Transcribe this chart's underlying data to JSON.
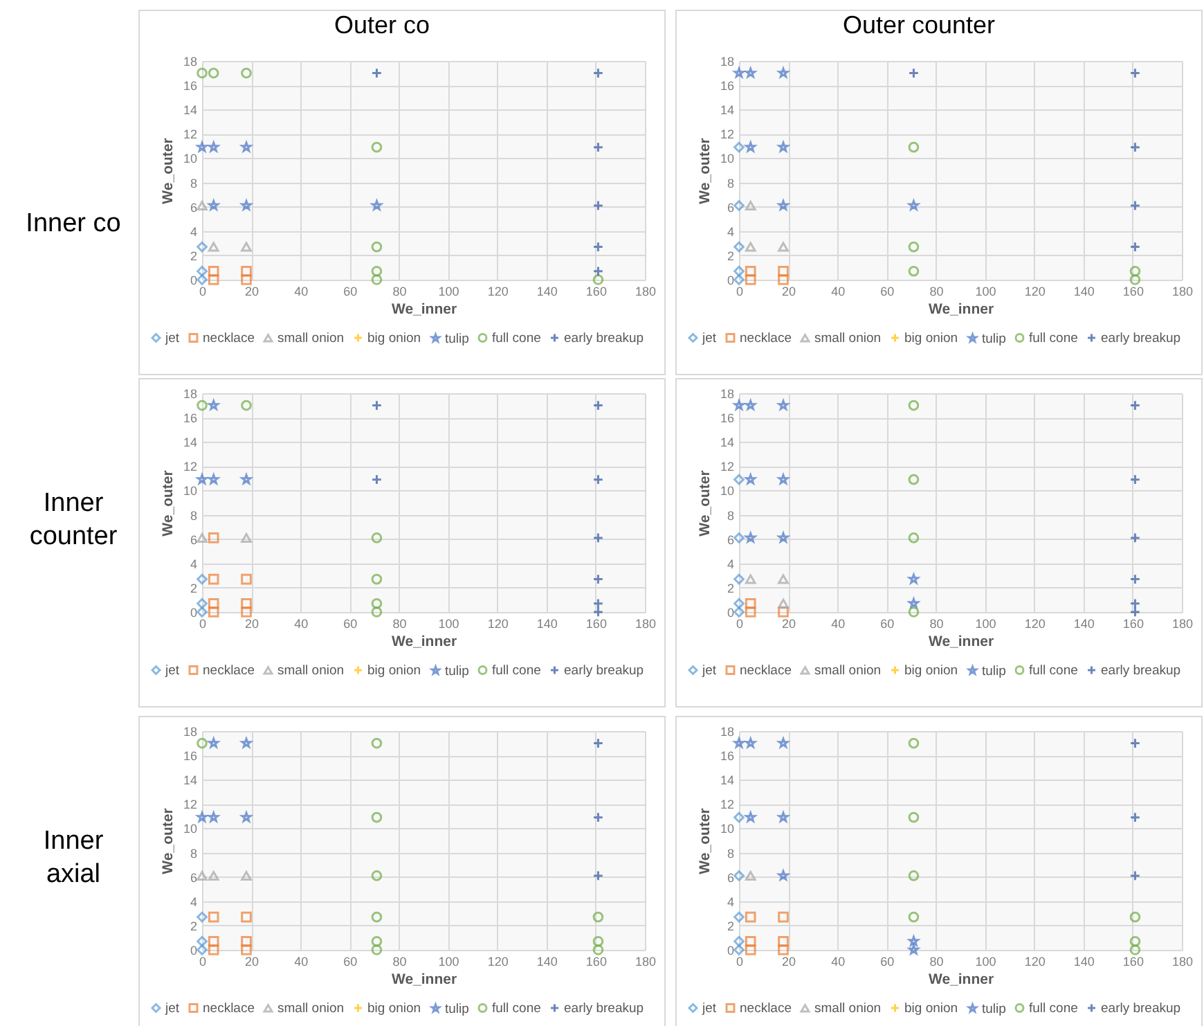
{
  "chart_data": [
    {
      "type": "scatter",
      "title": "Outer co",
      "annotations": [
        "Inner co"
      ],
      "xlabel": "We_inner",
      "ylabel": "We_outer",
      "xlim": [
        0,
        180
      ],
      "ylim": [
        0,
        18
      ],
      "xticks": [
        0,
        20,
        40,
        60,
        80,
        100,
        120,
        140,
        160,
        180
      ],
      "yticks": [
        0,
        2,
        4,
        6,
        8,
        10,
        12,
        14,
        16,
        18
      ],
      "grid": true,
      "legend": "bottom",
      "series": [
        {
          "name": "jet",
          "color": "#5b9bd5",
          "marker": "diamond",
          "x": [
            0,
            0,
            0
          ],
          "values": [
            2.7,
            0.7,
            0
          ]
        },
        {
          "name": "necklace",
          "color": "#ed7d31",
          "marker": "square",
          "x": [
            4.7,
            4.7,
            18,
            18
          ],
          "values": [
            0.7,
            0,
            0.7,
            0
          ]
        },
        {
          "name": "small onion",
          "color": "#a5a5a5",
          "marker": "triangle",
          "x": [
            0,
            4.7,
            18
          ],
          "values": [
            6.1,
            2.7,
            2.7
          ]
        },
        {
          "name": "big onion",
          "color": "#ffc000",
          "marker": "cross"
        },
        {
          "name": "tulip",
          "color": "#4472c4",
          "marker": "star",
          "x": [
            0,
            4.7,
            18,
            4.7,
            18,
            71
          ],
          "values": [
            10.9,
            10.9,
            10.9,
            6.1,
            6.1,
            6.1
          ]
        },
        {
          "name": "full cone",
          "color": "#70ad47",
          "marker": "circle",
          "x": [
            0,
            4.7,
            18,
            71,
            71,
            71,
            71,
            161
          ],
          "values": [
            17,
            17,
            17,
            10.9,
            2.7,
            0.7,
            0,
            0
          ]
        },
        {
          "name": "early breakup",
          "color": "#2f55a0",
          "marker": "cross",
          "x": [
            71,
            161,
            161,
            161,
            161,
            161
          ],
          "values": [
            17,
            17,
            10.9,
            6.1,
            2.7,
            0.7
          ]
        }
      ]
    },
    {
      "type": "scatter",
      "title": "Outer counter",
      "xlabel": "We_inner",
      "ylabel": "We_outer",
      "xlim": [
        0,
        180
      ],
      "ylim": [
        0,
        18
      ],
      "xticks": [
        0,
        20,
        40,
        60,
        80,
        100,
        120,
        140,
        160,
        180
      ],
      "yticks": [
        0,
        2,
        4,
        6,
        8,
        10,
        12,
        14,
        16,
        18
      ],
      "grid": true,
      "legend": "bottom",
      "series": [
        {
          "name": "jet",
          "color": "#5b9bd5",
          "marker": "diamond",
          "x": [
            0,
            0,
            0,
            0,
            0
          ],
          "values": [
            10.9,
            6.1,
            2.7,
            0.7,
            0
          ]
        },
        {
          "name": "necklace",
          "color": "#ed7d31",
          "marker": "square",
          "x": [
            4.7,
            4.7,
            18,
            18
          ],
          "values": [
            0.7,
            0,
            0.7,
            0
          ]
        },
        {
          "name": "small onion",
          "color": "#a5a5a5",
          "marker": "triangle",
          "x": [
            4.7,
            4.7,
            18
          ],
          "values": [
            6.1,
            2.7,
            2.7
          ]
        },
        {
          "name": "big onion",
          "color": "#ffc000",
          "marker": "cross"
        },
        {
          "name": "tulip",
          "color": "#4472c4",
          "marker": "star",
          "x": [
            0,
            4.7,
            18,
            4.7,
            18,
            18,
            71
          ],
          "values": [
            17,
            17,
            17,
            10.9,
            10.9,
            6.1,
            6.1
          ]
        },
        {
          "name": "full cone",
          "color": "#70ad47",
          "marker": "circle",
          "x": [
            71,
            71,
            71,
            161,
            161
          ],
          "values": [
            10.9,
            2.7,
            0.7,
            0.7,
            0
          ]
        },
        {
          "name": "early breakup",
          "color": "#2f55a0",
          "marker": "cross",
          "x": [
            71,
            161,
            161,
            161,
            161
          ],
          "values": [
            17,
            17,
            10.9,
            6.1,
            2.7
          ]
        }
      ]
    },
    {
      "type": "scatter",
      "annotations": [
        "Inner counter"
      ],
      "xlabel": "We_inner",
      "ylabel": "We_outer",
      "xlim": [
        0,
        180
      ],
      "ylim": [
        0,
        18
      ],
      "xticks": [
        0,
        20,
        40,
        60,
        80,
        100,
        120,
        140,
        160,
        180
      ],
      "yticks": [
        0,
        2,
        4,
        6,
        8,
        10,
        12,
        14,
        16,
        18
      ],
      "grid": true,
      "legend": "bottom",
      "series": [
        {
          "name": "jet",
          "color": "#5b9bd5",
          "marker": "diamond",
          "x": [
            0,
            0,
            0
          ],
          "values": [
            2.7,
            0.7,
            0
          ]
        },
        {
          "name": "necklace",
          "color": "#ed7d31",
          "marker": "square",
          "x": [
            4.7,
            4.7,
            18,
            4.7,
            4.7,
            18,
            18
          ],
          "values": [
            6.1,
            2.7,
            2.7,
            0.7,
            0,
            0.7,
            0
          ]
        },
        {
          "name": "small onion",
          "color": "#a5a5a5",
          "marker": "triangle",
          "x": [
            0,
            18
          ],
          "values": [
            6.1,
            6.1
          ]
        },
        {
          "name": "big onion",
          "color": "#ffc000",
          "marker": "cross"
        },
        {
          "name": "tulip",
          "color": "#4472c4",
          "marker": "star",
          "x": [
            4.7,
            0,
            4.7,
            18
          ],
          "values": [
            17,
            10.9,
            10.9,
            10.9
          ]
        },
        {
          "name": "full cone",
          "color": "#70ad47",
          "marker": "circle",
          "x": [
            0,
            18,
            71,
            71,
            71,
            71
          ],
          "values": [
            17,
            17,
            6.1,
            2.7,
            0.7,
            0
          ]
        },
        {
          "name": "early breakup",
          "color": "#2f55a0",
          "marker": "cross",
          "x": [
            71,
            161,
            71,
            161,
            161,
            161,
            161,
            161
          ],
          "values": [
            17,
            17,
            10.9,
            10.9,
            6.1,
            2.7,
            0.7,
            0
          ]
        }
      ]
    },
    {
      "type": "scatter",
      "xlabel": "We_inner",
      "ylabel": "We_outer",
      "xlim": [
        0,
        180
      ],
      "ylim": [
        0,
        18
      ],
      "xticks": [
        0,
        20,
        40,
        60,
        80,
        100,
        120,
        140,
        160,
        180
      ],
      "yticks": [
        0,
        2,
        4,
        6,
        8,
        10,
        12,
        14,
        16,
        18
      ],
      "grid": true,
      "legend": "bottom",
      "series": [
        {
          "name": "jet",
          "color": "#5b9bd5",
          "marker": "diamond",
          "x": [
            0,
            0,
            0,
            0,
            0
          ],
          "values": [
            10.9,
            6.1,
            2.7,
            0.7,
            0
          ]
        },
        {
          "name": "necklace",
          "color": "#ed7d31",
          "marker": "square",
          "x": [
            4.7,
            4.7,
            18
          ],
          "values": [
            0.7,
            0,
            0
          ]
        },
        {
          "name": "small onion",
          "color": "#a5a5a5",
          "marker": "triangle",
          "x": [
            4.7,
            18,
            18
          ],
          "values": [
            2.7,
            2.7,
            0.7
          ]
        },
        {
          "name": "big onion",
          "color": "#ffc000",
          "marker": "cross"
        },
        {
          "name": "tulip",
          "color": "#4472c4",
          "marker": "star",
          "x": [
            0,
            4.7,
            18,
            4.7,
            18,
            4.7,
            18,
            71,
            71
          ],
          "values": [
            17,
            17,
            17,
            10.9,
            10.9,
            6.1,
            6.1,
            2.7,
            0.7
          ]
        },
        {
          "name": "full cone",
          "color": "#70ad47",
          "marker": "circle",
          "x": [
            71,
            71,
            71,
            71
          ],
          "values": [
            17,
            10.9,
            6.1,
            0
          ]
        },
        {
          "name": "early breakup",
          "color": "#2f55a0",
          "marker": "cross",
          "x": [
            161,
            161,
            161,
            161,
            161,
            161
          ],
          "values": [
            17,
            10.9,
            6.1,
            2.7,
            0.7,
            0
          ]
        }
      ]
    },
    {
      "type": "scatter",
      "annotations": [
        "Inner axial"
      ],
      "xlabel": "We_inner",
      "ylabel": "We_outer",
      "xlim": [
        0,
        180
      ],
      "ylim": [
        0,
        18
      ],
      "xticks": [
        0,
        20,
        40,
        60,
        80,
        100,
        120,
        140,
        160,
        180
      ],
      "yticks": [
        0,
        2,
        4,
        6,
        8,
        10,
        12,
        14,
        16,
        18
      ],
      "grid": true,
      "legend": "bottom",
      "series": [
        {
          "name": "jet",
          "color": "#5b9bd5",
          "marker": "diamond",
          "x": [
            0,
            0,
            0
          ],
          "values": [
            2.7,
            0.7,
            0
          ]
        },
        {
          "name": "necklace",
          "color": "#ed7d31",
          "marker": "square",
          "x": [
            4.7,
            18,
            4.7,
            4.7,
            18,
            18
          ],
          "values": [
            2.7,
            2.7,
            0.7,
            0,
            0.7,
            0
          ]
        },
        {
          "name": "small onion",
          "color": "#a5a5a5",
          "marker": "triangle",
          "x": [
            0,
            4.7,
            18
          ],
          "values": [
            6.1,
            6.1,
            6.1
          ]
        },
        {
          "name": "big onion",
          "color": "#ffc000",
          "marker": "cross"
        },
        {
          "name": "tulip",
          "color": "#4472c4",
          "marker": "star",
          "x": [
            4.7,
            18,
            0,
            4.7,
            18
          ],
          "values": [
            17,
            17,
            10.9,
            10.9,
            10.9
          ]
        },
        {
          "name": "full cone",
          "color": "#70ad47",
          "marker": "circle",
          "x": [
            0,
            71,
            71,
            71,
            71,
            71,
            71,
            161,
            161,
            161
          ],
          "values": [
            17,
            17,
            10.9,
            6.1,
            2.7,
            0.7,
            0,
            2.7,
            0.7,
            0
          ]
        },
        {
          "name": "early breakup",
          "color": "#2f55a0",
          "marker": "cross",
          "x": [
            161,
            161,
            161
          ],
          "values": [
            17,
            10.9,
            6.1
          ]
        }
      ]
    },
    {
      "type": "scatter",
      "xlabel": "We_inner",
      "ylabel": "We_outer",
      "xlim": [
        0,
        180
      ],
      "ylim": [
        0,
        18
      ],
      "xticks": [
        0,
        20,
        40,
        60,
        80,
        100,
        120,
        140,
        160,
        180
      ],
      "yticks": [
        0,
        2,
        4,
        6,
        8,
        10,
        12,
        14,
        16,
        18
      ],
      "grid": true,
      "legend": "bottom",
      "series": [
        {
          "name": "jet",
          "color": "#5b9bd5",
          "marker": "diamond",
          "x": [
            0,
            0,
            0,
            0,
            0
          ],
          "values": [
            10.9,
            6.1,
            2.7,
            0.7,
            0
          ]
        },
        {
          "name": "necklace",
          "color": "#ed7d31",
          "marker": "square",
          "x": [
            4.7,
            18,
            4.7,
            4.7,
            18,
            18
          ],
          "values": [
            2.7,
            2.7,
            0.7,
            0,
            0.7,
            0
          ]
        },
        {
          "name": "small onion",
          "color": "#a5a5a5",
          "marker": "triangle",
          "x": [
            4.7
          ],
          "values": [
            6.1
          ]
        },
        {
          "name": "big onion",
          "color": "#ffc000",
          "marker": "cross"
        },
        {
          "name": "tulip",
          "color": "#4472c4",
          "marker": "star",
          "x": [
            0,
            4.7,
            18,
            4.7,
            18,
            18,
            71,
            71
          ],
          "values": [
            17,
            17,
            17,
            10.9,
            10.9,
            6.1,
            0.7,
            0
          ]
        },
        {
          "name": "full cone",
          "color": "#70ad47",
          "marker": "circle",
          "x": [
            71,
            71,
            71,
            71,
            161,
            161,
            161
          ],
          "values": [
            17,
            10.9,
            6.1,
            2.7,
            2.7,
            0.7,
            0
          ]
        },
        {
          "name": "early breakup",
          "color": "#2f55a0",
          "marker": "cross",
          "x": [
            161,
            161,
            161
          ],
          "values": [
            17,
            10.9,
            6.1
          ]
        }
      ]
    }
  ]
}
